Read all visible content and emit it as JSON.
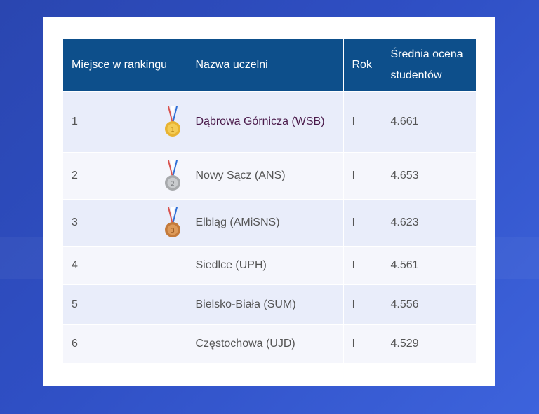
{
  "table": {
    "headers": {
      "place": "Miejsce w rankingu",
      "name": "Nazwa uczelni",
      "year": "Rok",
      "score": "Średnia ocena studentów"
    },
    "rows": [
      {
        "place": "1",
        "name": "Dąbrowa Górnicza (WSB)",
        "year": "I",
        "score": "4.661",
        "medal": "gold-medal-icon"
      },
      {
        "place": "2",
        "name": "Nowy Sącz (ANS)",
        "year": "I",
        "score": "4.653",
        "medal": "silver-medal-icon"
      },
      {
        "place": "3",
        "name": "Elbląg (AMiSNS)",
        "year": "I",
        "score": "4.623",
        "medal": "bronze-medal-icon"
      },
      {
        "place": "4",
        "name": "Siedlce (UPH)",
        "year": "I",
        "score": "4.561"
      },
      {
        "place": "5",
        "name": "Bielsko-Biała (SUM)",
        "year": "I",
        "score": "4.556"
      },
      {
        "place": "6",
        "name": "Częstochowa (UJD)",
        "year": "I",
        "score": "4.529"
      }
    ]
  },
  "colors": {
    "header_bg": "#0d4f8b",
    "row_odd": "#e9edfa",
    "row_even": "#f5f6fc",
    "link_text": "#4a1a4a",
    "page_bg": "#2f4fc4"
  }
}
